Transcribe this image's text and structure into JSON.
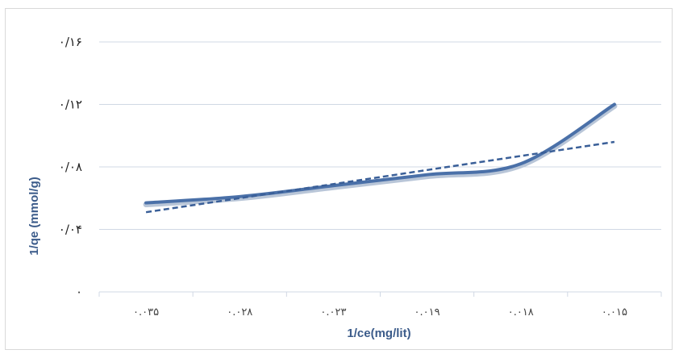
{
  "chart_data": {
    "type": "line",
    "title": "",
    "xlabel": "1/ce(mg/lit)",
    "ylabel": "1/qe (mmol/g)",
    "categories": [
      "۰.۰۳۵",
      "۰.۰۲۸",
      "۰.۰۲۳",
      "۰.۰۱۹",
      "۰.۰۱۸",
      "۰.۰۱۵"
    ],
    "y_ticks": [
      {
        "label": "۰",
        "value": 0
      },
      {
        "label": "۰/۰۴",
        "value": 0.04
      },
      {
        "label": "۰/۰۸",
        "value": 0.08
      },
      {
        "label": "۰/۱۲",
        "value": 0.12
      },
      {
        "label": "۰/۱۶",
        "value": 0.16
      }
    ],
    "ylim": [
      0,
      0.16
    ],
    "grid": true,
    "legend": "none",
    "series": [
      {
        "style": "solid",
        "color": "#4a70a8",
        "values": [
          0.057,
          0.061,
          0.068,
          0.075,
          0.082,
          0.12
        ]
      },
      {
        "style": "dashed",
        "color": "#3a5f98",
        "values": [
          0.051,
          0.06,
          0.069,
          0.078,
          0.088,
          0.096
        ]
      }
    ]
  }
}
